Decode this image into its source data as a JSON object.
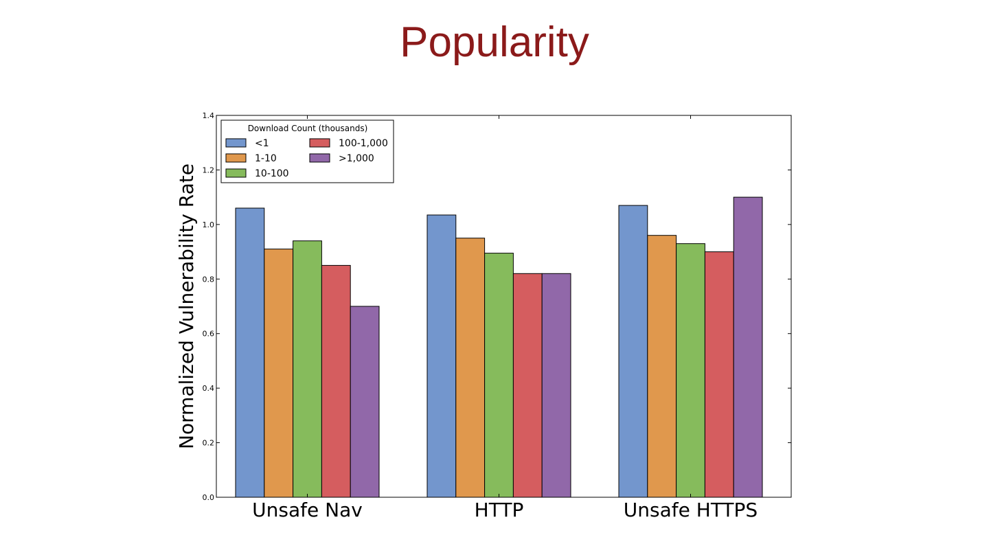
{
  "slide": {
    "title": "Popularity"
  },
  "chart_data": {
    "type": "bar",
    "categories": [
      "Unsafe Nav",
      "HTTP",
      "Unsafe HTTPS"
    ],
    "series": [
      {
        "name": "<1",
        "color": "#7396cd",
        "values": [
          1.06,
          1.035,
          1.07
        ]
      },
      {
        "name": "1-10",
        "color": "#e0984d",
        "values": [
          0.91,
          0.95,
          0.96
        ]
      },
      {
        "name": "10-100",
        "color": "#86bb5c",
        "values": [
          0.94,
          0.895,
          0.93
        ]
      },
      {
        "name": "100-1,000",
        "color": "#d55d5f",
        "values": [
          0.85,
          0.82,
          0.9
        ]
      },
      {
        "name": ">1,000",
        "color": "#9168a9",
        "values": [
          0.7,
          0.82,
          1.1
        ]
      }
    ],
    "xlabel": "",
    "ylabel": "Normalized Vulnerability Rate",
    "ylim": [
      0.0,
      1.4
    ],
    "yticks": [
      "0.0",
      "0.2",
      "0.4",
      "0.6",
      "0.8",
      "1.0",
      "1.2",
      "1.4"
    ],
    "legend": {
      "title": "Download Count (thousands)",
      "placement": "top-left",
      "columns": 2
    },
    "grid": false
  }
}
